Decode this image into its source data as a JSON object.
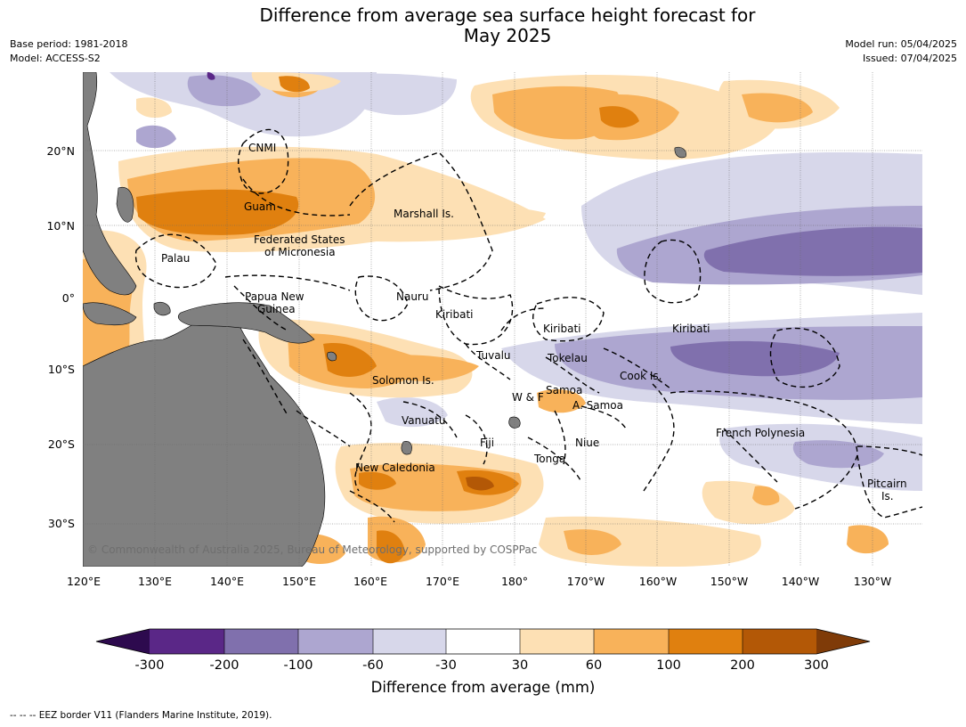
{
  "header": {
    "title_line1": "Difference from average sea surface height forecast for",
    "title_line2": "May 2025",
    "base_period": "Base period: 1981-2018",
    "model": "Model: ACCESS-S2",
    "model_run": "Model run: 05/04/2025",
    "issued": "Issued: 07/04/2025"
  },
  "axes": {
    "lat_labels": [
      "20°N",
      "10°N",
      "0°",
      "10°S",
      "20°S",
      "30°S"
    ],
    "lon_labels": [
      "120°E",
      "130°E",
      "140°E",
      "150°E",
      "160°E",
      "170°E",
      "180°",
      "170°W",
      "160°W",
      "150°W",
      "140°W",
      "130°W"
    ]
  },
  "places": {
    "cnmi": "CNMI",
    "guam": "Guam",
    "marshall": "Marshall Is.",
    "fsm_1": "Federated States",
    "fsm_2": "of Micronesia",
    "palau": "Palau",
    "png_1": "Papua New",
    "png_2": "Guinea",
    "nauru": "Nauru",
    "kiribati_west": "Kiribati",
    "kiribati_central": "Kiribati",
    "kiribati_east": "Kiribati",
    "tuvalu": "Tuvalu",
    "tokelau": "Tokelau",
    "cook": "Cook Is.",
    "solomon": "Solomon Is.",
    "samoa": "Samoa",
    "wallis": "W & F",
    "asamoa": "A. Samoa",
    "vanuatu": "Vanuatu",
    "fiji": "Fiji",
    "niue": "Niue",
    "tonga": "Tonga",
    "french_polynesia": "French Polynesia",
    "new_caledonia": "New Caledonia",
    "pitcairn_1": "Pitcairn",
    "pitcairn_2": "Is."
  },
  "copyright": "© Commonwealth of Australia 2025, Bureau of Meteorology, supported by COSPPac",
  "colorbar": {
    "labels": [
      "-300",
      "-200",
      "-100",
      "-60",
      "-30",
      "30",
      "60",
      "100",
      "200",
      "300"
    ],
    "title": "Difference from average (mm)",
    "colors": [
      "#2d0a4e",
      "#5a2787",
      "#8070ad",
      "#ada6d0",
      "#d7d7ea",
      "#ffffff",
      "#fde0b4",
      "#f8b25a",
      "#e0800f",
      "#b35806",
      "#7f3b08"
    ]
  },
  "footnote": "--  --  -- EEZ border V11 (Flanders Marine Institute, 2019)."
}
